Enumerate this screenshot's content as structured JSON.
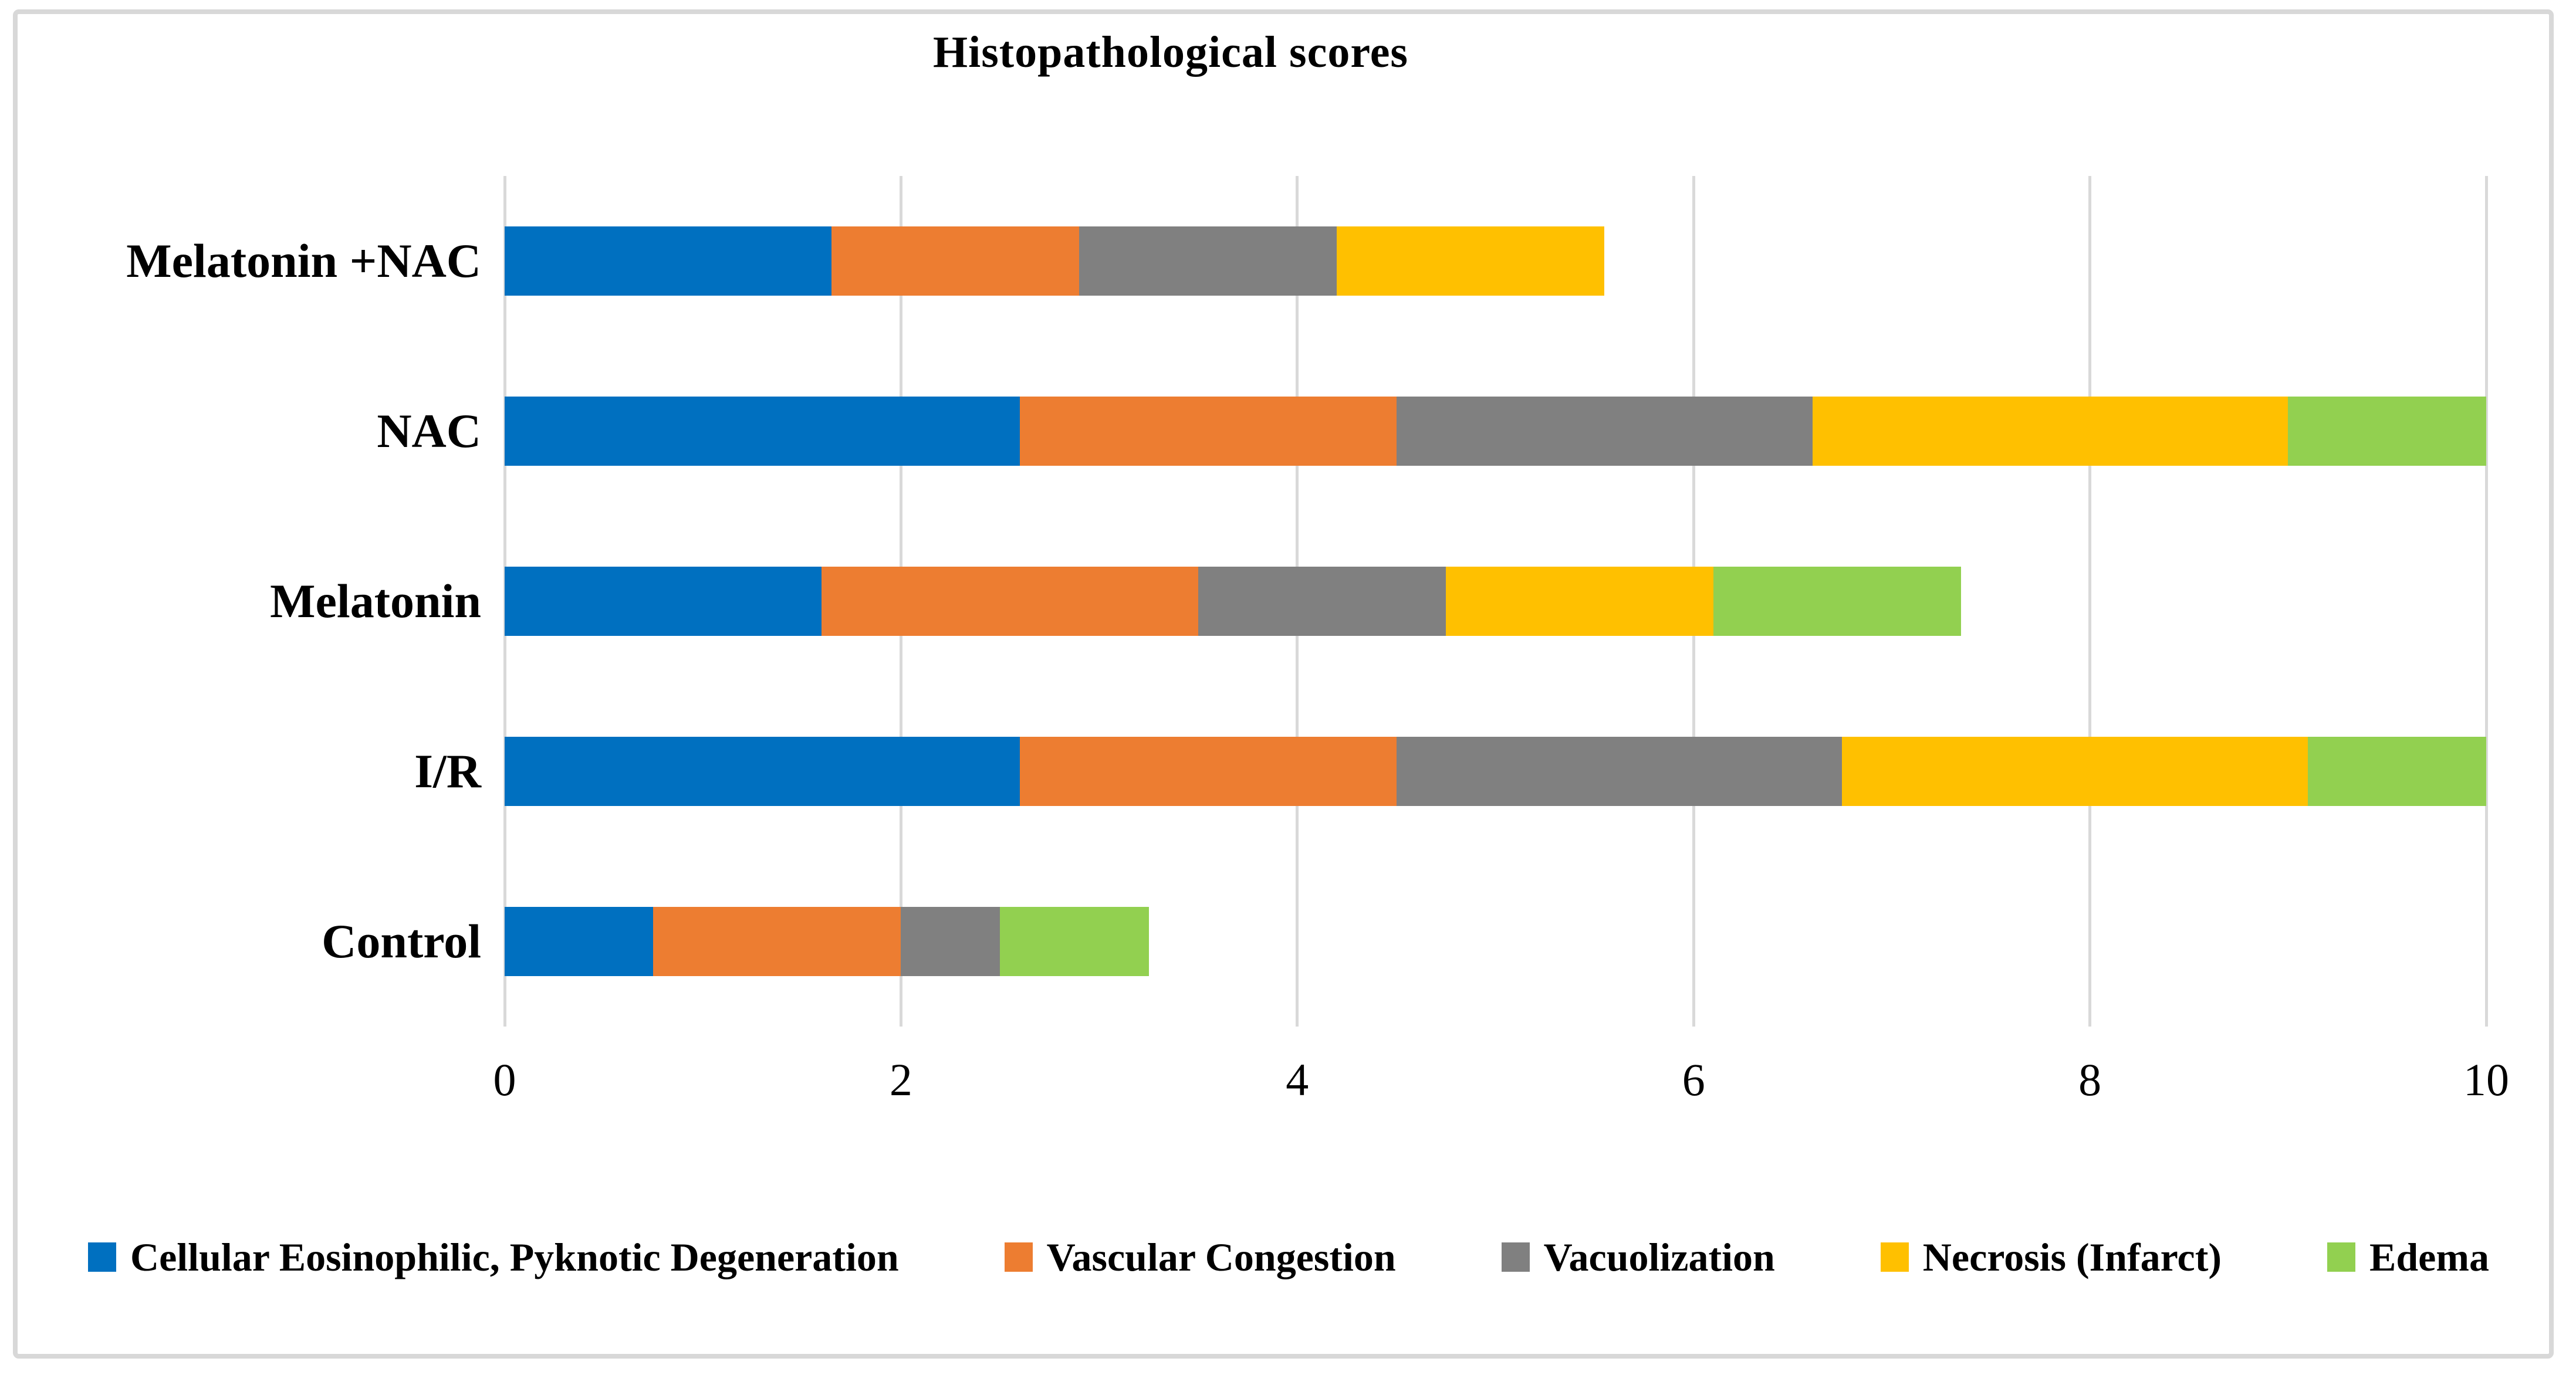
{
  "page": {
    "background_color": "#FFFFFF",
    "frame_border_color": "#D8D8D8"
  },
  "chart_data": {
    "type": "bar",
    "orientation": "horizontal",
    "stacked": true,
    "title": "Histopathological scores",
    "categories": [
      "Melatonin +NAC",
      "NAC",
      "Melatonin",
      "I/R",
      "Control"
    ],
    "series": [
      {
        "name": "Cellular Eosinophilic, Pyknotic Degeneration",
        "color": "#0070C0",
        "values": [
          1.65,
          2.6,
          1.6,
          2.6,
          0.75
        ]
      },
      {
        "name": "Vascular Congestion",
        "color": "#ED7D31",
        "values": [
          1.25,
          1.9,
          1.9,
          1.9,
          1.25
        ]
      },
      {
        "name": "Vacuolization",
        "color": "#808080",
        "values": [
          1.3,
          2.1,
          1.25,
          2.25,
          0.5
        ]
      },
      {
        "name": "Necrosis (Infarct)",
        "color": "#FFC000",
        "values": [
          1.35,
          2.4,
          1.35,
          2.35,
          0
        ]
      },
      {
        "name": "Edema",
        "color": "#92D050",
        "values": [
          0,
          1.0,
          1.25,
          0.9,
          0.75
        ]
      }
    ],
    "category_totals": [
      5.55,
      10.0,
      7.35,
      10.0,
      3.25
    ],
    "xlim": [
      0,
      10
    ],
    "xticks": [
      0,
      2,
      4,
      6,
      8,
      10
    ],
    "gridlines": "vertical",
    "gridline_color": "#D9D9D9",
    "legend_position": "bottom"
  }
}
